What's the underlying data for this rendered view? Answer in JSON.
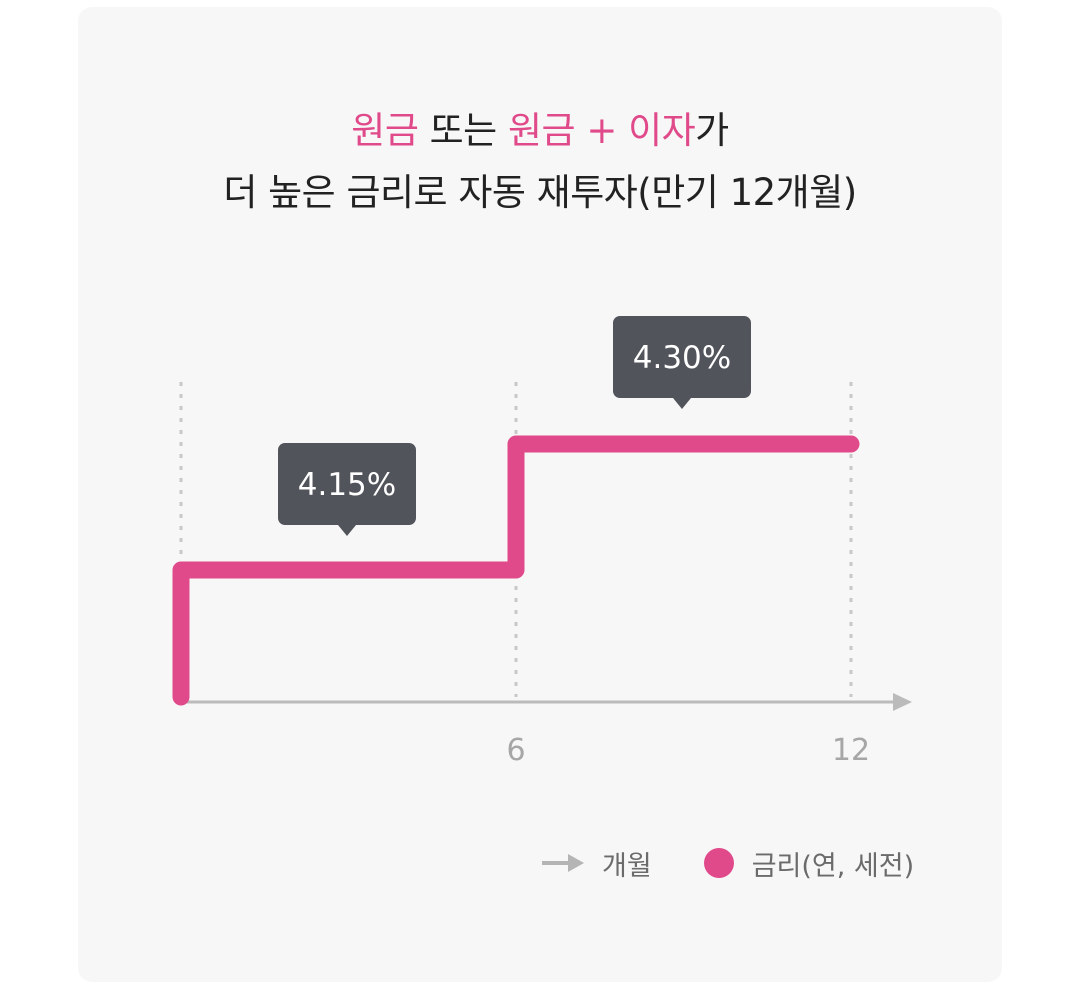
{
  "title": {
    "line1": [
      {
        "text": "원금",
        "highlight": true
      },
      {
        "text": " 또는 ",
        "highlight": false
      },
      {
        "text": "원금 + 이자",
        "highlight": true
      },
      {
        "text": "가",
        "highlight": false
      }
    ],
    "line2": "더 높은 금리로 자동 재투자(만기 12개월)"
  },
  "colors": {
    "accent": "#e04a8a",
    "text": "#222222",
    "callout_bg": "#52545b",
    "axis": "#bbbbbb",
    "card_bg": "#f7f7f7"
  },
  "chart_data": {
    "type": "line",
    "step": true,
    "x_ticks": [
      "6",
      "12"
    ],
    "xlim": [
      0,
      12
    ],
    "series": [
      {
        "name": "금리(연, 세전)",
        "points": [
          {
            "x": 0,
            "y": 4.15
          },
          {
            "x": 6,
            "y": 4.15
          },
          {
            "x": 6,
            "y": 4.3
          },
          {
            "x": 12,
            "y": 4.3
          }
        ]
      }
    ],
    "annotations": [
      {
        "x_from": 0,
        "x_to": 6,
        "value": 4.15,
        "label": "4.15%"
      },
      {
        "x_from": 6,
        "x_to": 12,
        "value": 4.3,
        "label": "4.30%"
      }
    ],
    "gridlines_x": [
      0,
      6,
      12
    ]
  },
  "legend": {
    "items": [
      {
        "label": "개월",
        "icon": "arrow-right-icon"
      },
      {
        "label": "금리(연, 세전)",
        "icon": "dot-icon"
      }
    ]
  }
}
